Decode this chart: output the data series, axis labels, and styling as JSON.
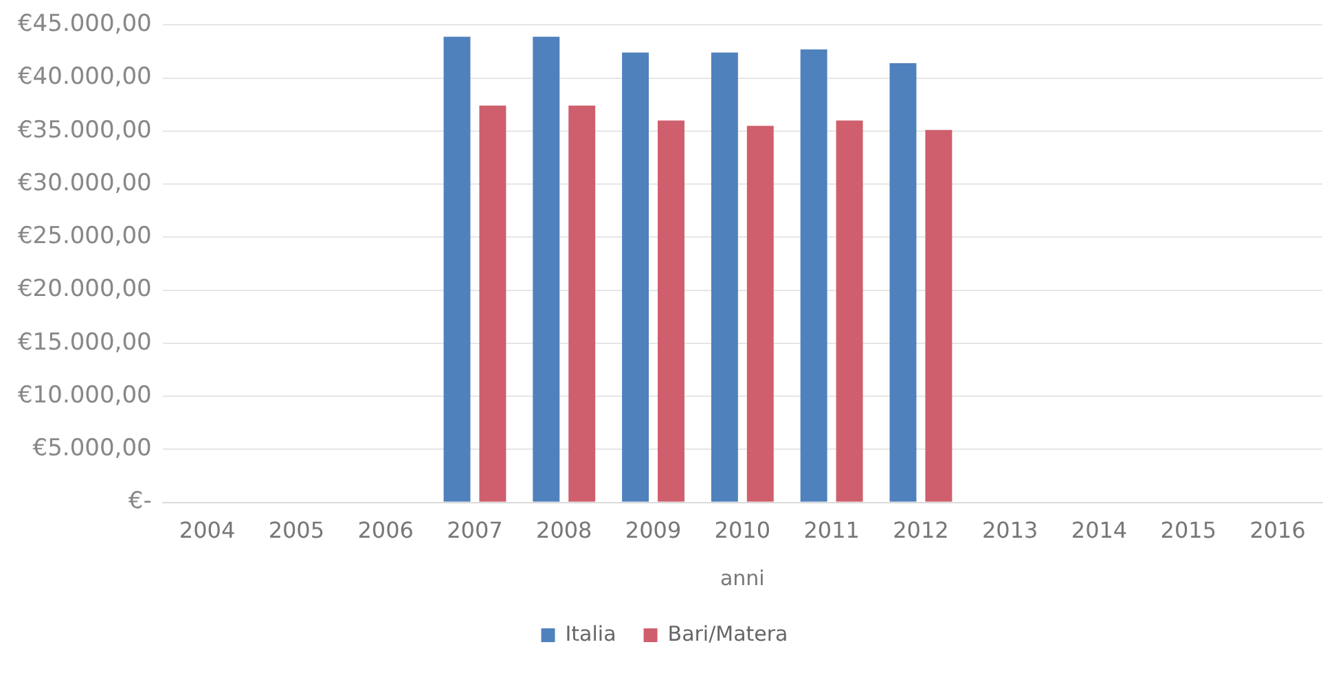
{
  "chart_data": {
    "type": "bar",
    "xlabel": "anni",
    "categories": [
      "2004",
      "2005",
      "2006",
      "2007",
      "2008",
      "2009",
      "2010",
      "2011",
      "2012",
      "2013",
      "2014",
      "2015",
      "2016"
    ],
    "series": [
      {
        "name": "Italia",
        "color": "#4f81bd",
        "values": [
          0,
          0,
          0,
          43900,
          43900,
          42400,
          42400,
          42700,
          41400,
          0,
          0,
          0,
          0
        ]
      },
      {
        "name": "Bari/Matera",
        "color": "#cf5f6c",
        "values": [
          0,
          0,
          0,
          37400,
          37400,
          36000,
          35500,
          36000,
          35100,
          0,
          0,
          0,
          0
        ]
      }
    ],
    "ylim": [
      0,
      45000
    ],
    "yticks": [
      {
        "value": 0,
        "label": "€-"
      },
      {
        "value": 5000,
        "label": "€5.000,00"
      },
      {
        "value": 10000,
        "label": "€10.000,00"
      },
      {
        "value": 15000,
        "label": "€15.000,00"
      },
      {
        "value": 20000,
        "label": "€20.000,00"
      },
      {
        "value": 25000,
        "label": "€25.000,00"
      },
      {
        "value": 30000,
        "label": "€30.000,00"
      },
      {
        "value": 35000,
        "label": "€35.000,00"
      },
      {
        "value": 40000,
        "label": "€40.000,00"
      },
      {
        "value": 45000,
        "label": "€45.000,00"
      }
    ],
    "grid": "y",
    "legend": "bottom"
  }
}
